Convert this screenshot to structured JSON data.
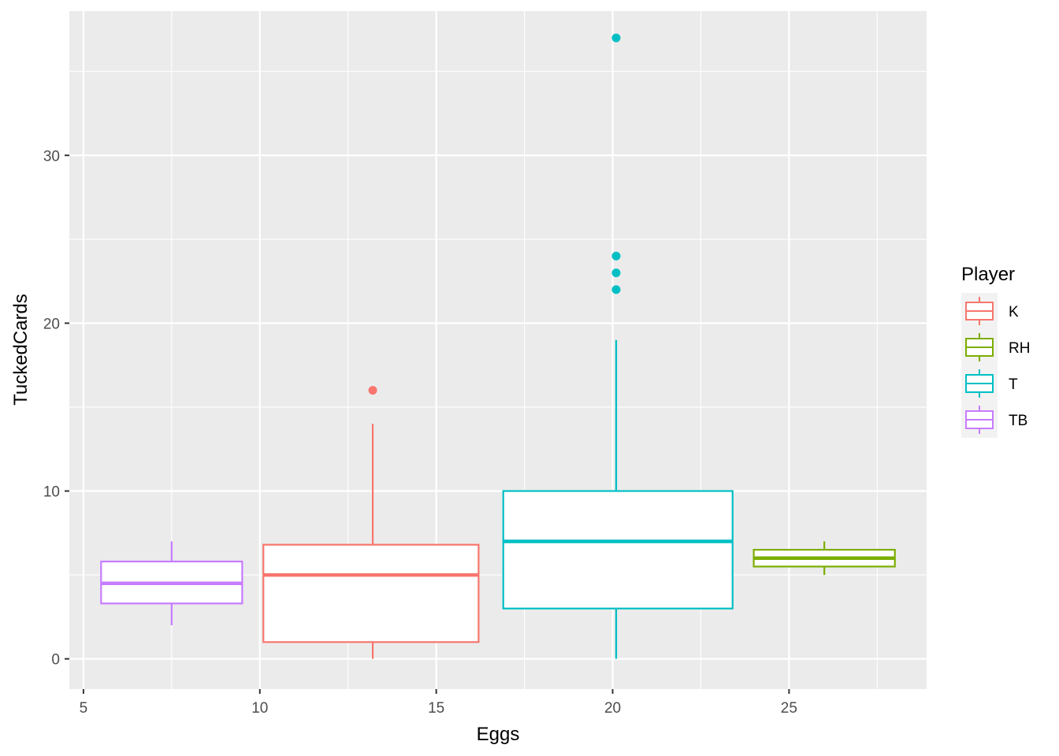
{
  "chart_data": {
    "type": "boxplot",
    "xlabel": "Eggs",
    "ylabel": "TuckedCards",
    "xlim": [
      4.6,
      28.9
    ],
    "ylim": [
      -1.8,
      38.6
    ],
    "x_ticks": [
      5,
      10,
      15,
      20,
      25
    ],
    "y_ticks": [
      0,
      10,
      20,
      30
    ],
    "grid": true,
    "legend": {
      "title": "Player",
      "placement": "right",
      "entries": [
        "K",
        "RH",
        "T",
        "TB"
      ]
    },
    "series": [
      {
        "name": "K",
        "color": "#F8766D",
        "x_range": [
          10.1,
          16.2
        ],
        "x_center": 13.2,
        "whisker_low": 0,
        "q1": 1,
        "median": 5,
        "q3": 6.8,
        "whisker_high": 14,
        "outliers": [
          16
        ]
      },
      {
        "name": "RH",
        "color": "#7CAE00",
        "x_range": [
          24.0,
          28.0
        ],
        "x_center": 26.0,
        "whisker_low": 5,
        "q1": 5.5,
        "median": 6,
        "q3": 6.5,
        "whisker_high": 7,
        "outliers": []
      },
      {
        "name": "T",
        "color": "#00BFC4",
        "x_range": [
          16.9,
          23.4
        ],
        "x_center": 20.1,
        "whisker_low": 0,
        "q1": 3,
        "median": 7,
        "q3": 10,
        "whisker_high": 19,
        "outliers": [
          22,
          23,
          24,
          37
        ]
      },
      {
        "name": "TB",
        "color": "#C77CFF",
        "x_range": [
          5.5,
          9.5
        ],
        "x_center": 7.5,
        "whisker_low": 2,
        "q1": 3.3,
        "median": 4.5,
        "q3": 5.8,
        "whisker_high": 7,
        "outliers": []
      }
    ]
  }
}
